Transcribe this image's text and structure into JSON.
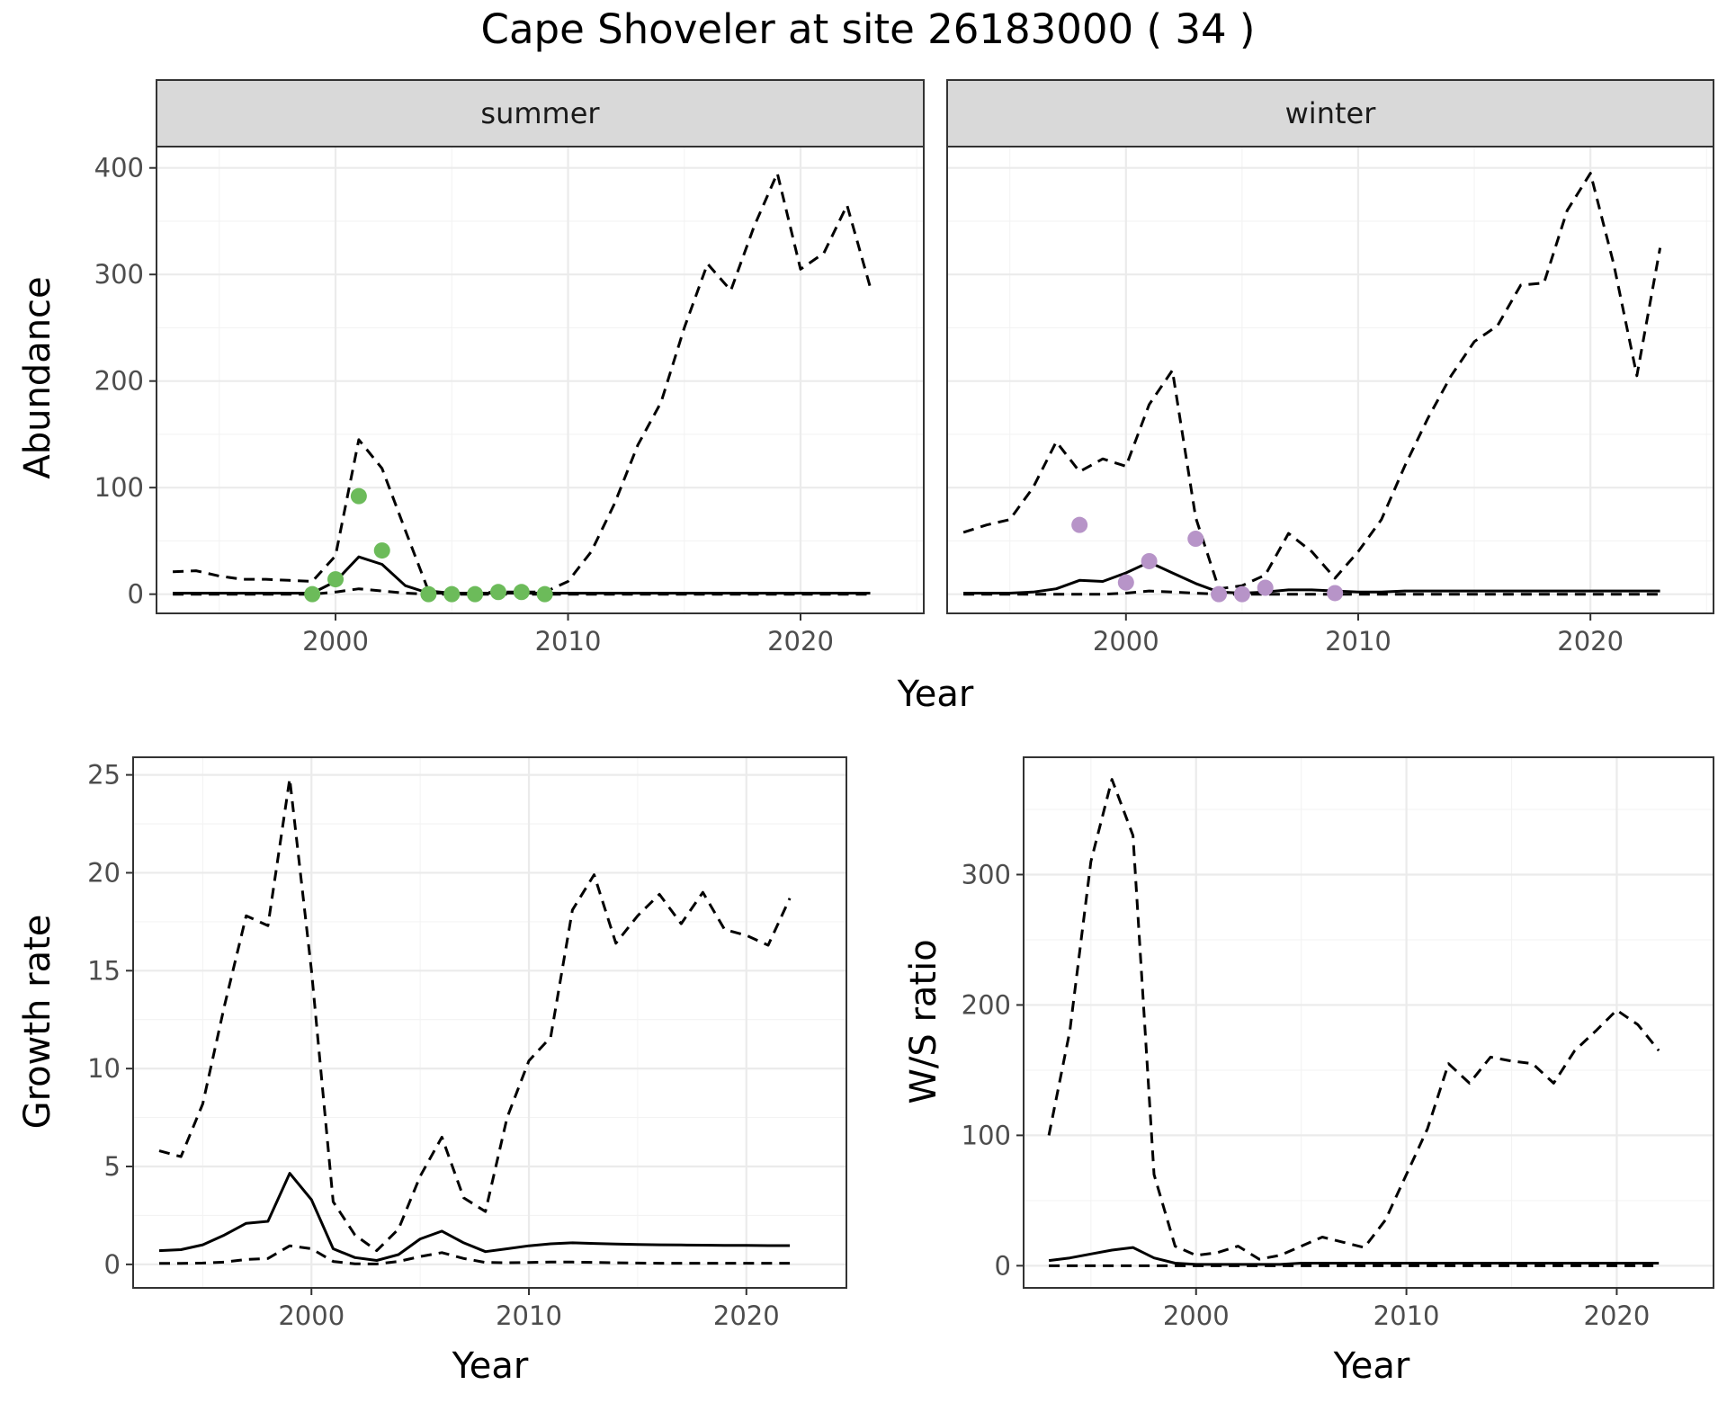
{
  "title": "Cape Shoveler at site 26183000 ( 34 )",
  "colors": {
    "summer_points": "#6cbb5a",
    "winter_points": "#b794c8",
    "lines": "#000000"
  },
  "chart_data": [
    {
      "id": "abundance",
      "type": "line",
      "ylabel": "Abundance",
      "xlabel": "Year",
      "xlim": [
        1992.3,
        2025.3
      ],
      "ylim": [
        -18,
        420
      ],
      "xticks": [
        2000,
        2010,
        2020
      ],
      "yticks": [
        0,
        100,
        200,
        300,
        400
      ],
      "grid": true,
      "facets": [
        {
          "label": "summer",
          "point_color": "#6cbb5a",
          "series": [
            {
              "style": "dashed-upper",
              "x": [
                1993,
                1994,
                1995,
                1996,
                1997,
                1998,
                1999,
                2000,
                2001,
                2002,
                2003,
                2004,
                2005,
                2006,
                2007,
                2008,
                2009,
                2010,
                2011,
                2012,
                2013,
                2014,
                2015,
                2016,
                2017,
                2018,
                2019,
                2020,
                2021,
                2022,
                2023
              ],
              "y": [
                21,
                22,
                17,
                14,
                14,
                13,
                12,
                36,
                145,
                118,
                60,
                3,
                1,
                1,
                2,
                2,
                2,
                12,
                40,
                85,
                140,
                180,
                250,
                310,
                285,
                345,
                395,
                305,
                320,
                365,
                288
              ]
            },
            {
              "style": "solid-mean",
              "x": [
                1993,
                1994,
                1995,
                1996,
                1997,
                1998,
                1999,
                2000,
                2001,
                2002,
                2003,
                2004,
                2005,
                2006,
                2007,
                2008,
                2009,
                2010,
                2011,
                2012,
                2013,
                2014,
                2015,
                2016,
                2017,
                2018,
                2019,
                2020,
                2021,
                2022,
                2023
              ],
              "y": [
                1,
                1,
                1,
                1,
                1,
                1,
                1,
                12,
                35,
                28,
                8,
                1,
                1,
                1,
                1,
                1,
                1,
                1,
                1,
                1,
                1,
                1,
                1,
                1,
                1,
                1,
                1,
                1,
                1,
                1,
                1
              ]
            },
            {
              "style": "dashed-lower",
              "x": [
                1993,
                1994,
                1995,
                1996,
                1997,
                1998,
                1999,
                2000,
                2001,
                2002,
                2003,
                2004,
                2005,
                2006,
                2007,
                2008,
                2009,
                2010,
                2011,
                2012,
                2013,
                2014,
                2015,
                2016,
                2017,
                2018,
                2019,
                2020,
                2021,
                2022,
                2023
              ],
              "y": [
                0,
                0,
                0,
                0,
                0,
                0,
                0,
                2,
                5,
                3,
                1,
                0,
                0,
                0,
                0,
                0,
                0,
                0,
                0,
                0,
                0,
                0,
                0,
                0,
                0,
                0,
                0,
                0,
                0,
                0,
                0
              ]
            }
          ],
          "points": {
            "x": [
              1999,
              2000,
              2001,
              2002,
              2004,
              2005,
              2006,
              2007,
              2008,
              2009
            ],
            "y": [
              0,
              14,
              92,
              41,
              0,
              0,
              0,
              2,
              2,
              0
            ]
          }
        },
        {
          "label": "winter",
          "point_color": "#b794c8",
          "series": [
            {
              "style": "dashed-upper",
              "x": [
                1993,
                1994,
                1995,
                1996,
                1997,
                1998,
                1999,
                2000,
                2001,
                2002,
                2003,
                2004,
                2005,
                2006,
                2007,
                2008,
                2009,
                2010,
                2011,
                2012,
                2013,
                2014,
                2015,
                2016,
                2017,
                2018,
                2019,
                2020,
                2021,
                2022,
                2023
              ],
              "y": [
                58,
                65,
                70,
                100,
                143,
                115,
                127,
                120,
                178,
                210,
                72,
                5,
                8,
                18,
                57,
                40,
                15,
                40,
                70,
                120,
                165,
                205,
                237,
                252,
                290,
                292,
                360,
                395,
                310,
                205,
                325
              ]
            },
            {
              "style": "solid-mean",
              "x": [
                1993,
                1994,
                1995,
                1996,
                1997,
                1998,
                1999,
                2000,
                2001,
                2002,
                2003,
                2004,
                2005,
                2006,
                2007,
                2008,
                2009,
                2010,
                2011,
                2012,
                2013,
                2014,
                2015,
                2016,
                2017,
                2018,
                2019,
                2020,
                2021,
                2022,
                2023
              ],
              "y": [
                1,
                1,
                1,
                2,
                5,
                13,
                12,
                20,
                30,
                20,
                10,
                2,
                1,
                2,
                4,
                4,
                3,
                2,
                2,
                3,
                3,
                3,
                3,
                3,
                3,
                3,
                3,
                3,
                3,
                3,
                3
              ]
            },
            {
              "style": "dashed-lower",
              "x": [
                1993,
                1994,
                1995,
                1996,
                1997,
                1998,
                1999,
                2000,
                2001,
                2002,
                2003,
                2004,
                2005,
                2006,
                2007,
                2008,
                2009,
                2010,
                2011,
                2012,
                2013,
                2014,
                2015,
                2016,
                2017,
                2018,
                2019,
                2020,
                2021,
                2022,
                2023
              ],
              "y": [
                0,
                0,
                0,
                0,
                0,
                0,
                0,
                1,
                3,
                2,
                1,
                0,
                0,
                0,
                0,
                0,
                0,
                0,
                0,
                0,
                0,
                0,
                0,
                0,
                0,
                0,
                0,
                0,
                0,
                0,
                0
              ]
            }
          ],
          "points": {
            "x": [
              1998,
              2000,
              2001,
              2003,
              2004,
              2005,
              2006,
              2009
            ],
            "y": [
              65,
              11,
              31,
              52,
              0,
              0,
              6,
              1
            ]
          }
        }
      ]
    },
    {
      "id": "growth",
      "type": "line",
      "ylabel": "Growth rate",
      "xlabel": "Year",
      "xlim": [
        1991.8,
        2024.6
      ],
      "ylim": [
        -1.2,
        25.9
      ],
      "xticks": [
        2000,
        2010,
        2020
      ],
      "yticks": [
        0,
        5,
        10,
        15,
        20,
        25
      ],
      "grid": true,
      "series": [
        {
          "style": "dashed-upper",
          "x": [
            1993,
            1994,
            1995,
            1996,
            1997,
            1998,
            1999,
            2000,
            2001,
            2002,
            2003,
            2004,
            2005,
            2006,
            2007,
            2008,
            2009,
            2010,
            2011,
            2012,
            2013,
            2014,
            2015,
            2016,
            2017,
            2018,
            2019,
            2020,
            2021,
            2022
          ],
          "y": [
            5.8,
            5.5,
            8.2,
            13.2,
            17.8,
            17.3,
            24.8,
            15,
            3.2,
            1.5,
            0.7,
            1.8,
            4.5,
            6.5,
            3.4,
            2.7,
            7.5,
            10.4,
            11.6,
            18.1,
            19.9,
            16.4,
            17.8,
            18.9,
            17.4,
            19,
            17.1,
            16.8,
            16.3,
            18.7
          ]
        },
        {
          "style": "solid-mean",
          "x": [
            1993,
            1994,
            1995,
            1996,
            1997,
            1998,
            1999,
            2000,
            2001,
            2002,
            2003,
            2004,
            2005,
            2006,
            2007,
            2008,
            2009,
            2010,
            2011,
            2012,
            2013,
            2014,
            2015,
            2016,
            2017,
            2018,
            2019,
            2020,
            2021,
            2022
          ],
          "y": [
            0.7,
            0.75,
            1,
            1.5,
            2.1,
            2.2,
            4.65,
            3.3,
            0.8,
            0.35,
            0.2,
            0.5,
            1.3,
            1.7,
            1.1,
            0.65,
            0.8,
            0.95,
            1.05,
            1.1,
            1.07,
            1.04,
            1.02,
            1,
            0.99,
            0.98,
            0.97,
            0.97,
            0.96,
            0.96
          ]
        },
        {
          "style": "dashed-lower",
          "x": [
            1993,
            1994,
            1995,
            1996,
            1997,
            1998,
            1999,
            2000,
            2001,
            2002,
            2003,
            2004,
            2005,
            2006,
            2007,
            2008,
            2009,
            2010,
            2011,
            2012,
            2013,
            2014,
            2015,
            2016,
            2017,
            2018,
            2019,
            2020,
            2021,
            2022
          ],
          "y": [
            0.05,
            0.05,
            0.07,
            0.12,
            0.25,
            0.3,
            0.95,
            0.8,
            0.15,
            0.03,
            0.02,
            0.15,
            0.4,
            0.6,
            0.3,
            0.1,
            0.08,
            0.1,
            0.12,
            0.12,
            0.1,
            0.08,
            0.07,
            0.06,
            0.06,
            0.06,
            0.06,
            0.06,
            0.06,
            0.06
          ]
        }
      ]
    },
    {
      "id": "ratio",
      "type": "line",
      "ylabel": "W/S ratio",
      "xlabel": "Year",
      "xlim": [
        1991.8,
        2024.6
      ],
      "ylim": [
        -17,
        390
      ],
      "xticks": [
        2000,
        2010,
        2020
      ],
      "yticks": [
        0,
        100,
        200,
        300
      ],
      "grid": true,
      "series": [
        {
          "style": "dashed-upper",
          "x": [
            1993,
            1994,
            1995,
            1996,
            1997,
            1998,
            1999,
            2000,
            2001,
            2002,
            2003,
            2004,
            2005,
            2006,
            2007,
            2008,
            2009,
            2010,
            2011,
            2012,
            2013,
            2014,
            2015,
            2016,
            2017,
            2018,
            2019,
            2020,
            2021,
            2022
          ],
          "y": [
            100,
            180,
            310,
            373,
            330,
            70,
            15,
            8,
            10,
            15,
            5,
            8,
            15,
            22,
            18,
            14,
            35,
            70,
            105,
            155,
            140,
            160,
            157,
            155,
            140,
            165,
            180,
            196,
            185,
            165
          ]
        },
        {
          "style": "solid-mean",
          "x": [
            1993,
            1994,
            1995,
            1996,
            1997,
            1998,
            1999,
            2000,
            2001,
            2002,
            2003,
            2004,
            2005,
            2006,
            2007,
            2008,
            2009,
            2010,
            2011,
            2012,
            2013,
            2014,
            2015,
            2016,
            2017,
            2018,
            2019,
            2020,
            2021,
            2022
          ],
          "y": [
            4,
            6,
            9,
            12,
            14,
            6,
            2,
            1,
            1,
            1,
            1,
            1,
            2,
            2,
            2,
            2,
            2,
            2,
            2,
            2,
            2,
            2,
            2,
            2,
            2,
            2,
            2,
            2,
            2,
            2
          ]
        },
        {
          "style": "dashed-lower",
          "x": [
            1993,
            1994,
            1995,
            1996,
            1997,
            1998,
            1999,
            2000,
            2001,
            2002,
            2003,
            2004,
            2005,
            2006,
            2007,
            2008,
            2009,
            2010,
            2011,
            2012,
            2013,
            2014,
            2015,
            2016,
            2017,
            2018,
            2019,
            2020,
            2021,
            2022
          ],
          "y": [
            0,
            0,
            0,
            0,
            0,
            0,
            0,
            0,
            0,
            0,
            0,
            0,
            0,
            0,
            0,
            0,
            0,
            0,
            0,
            0,
            0,
            0,
            0,
            0,
            0,
            0,
            0,
            0,
            0,
            0
          ]
        }
      ]
    }
  ]
}
